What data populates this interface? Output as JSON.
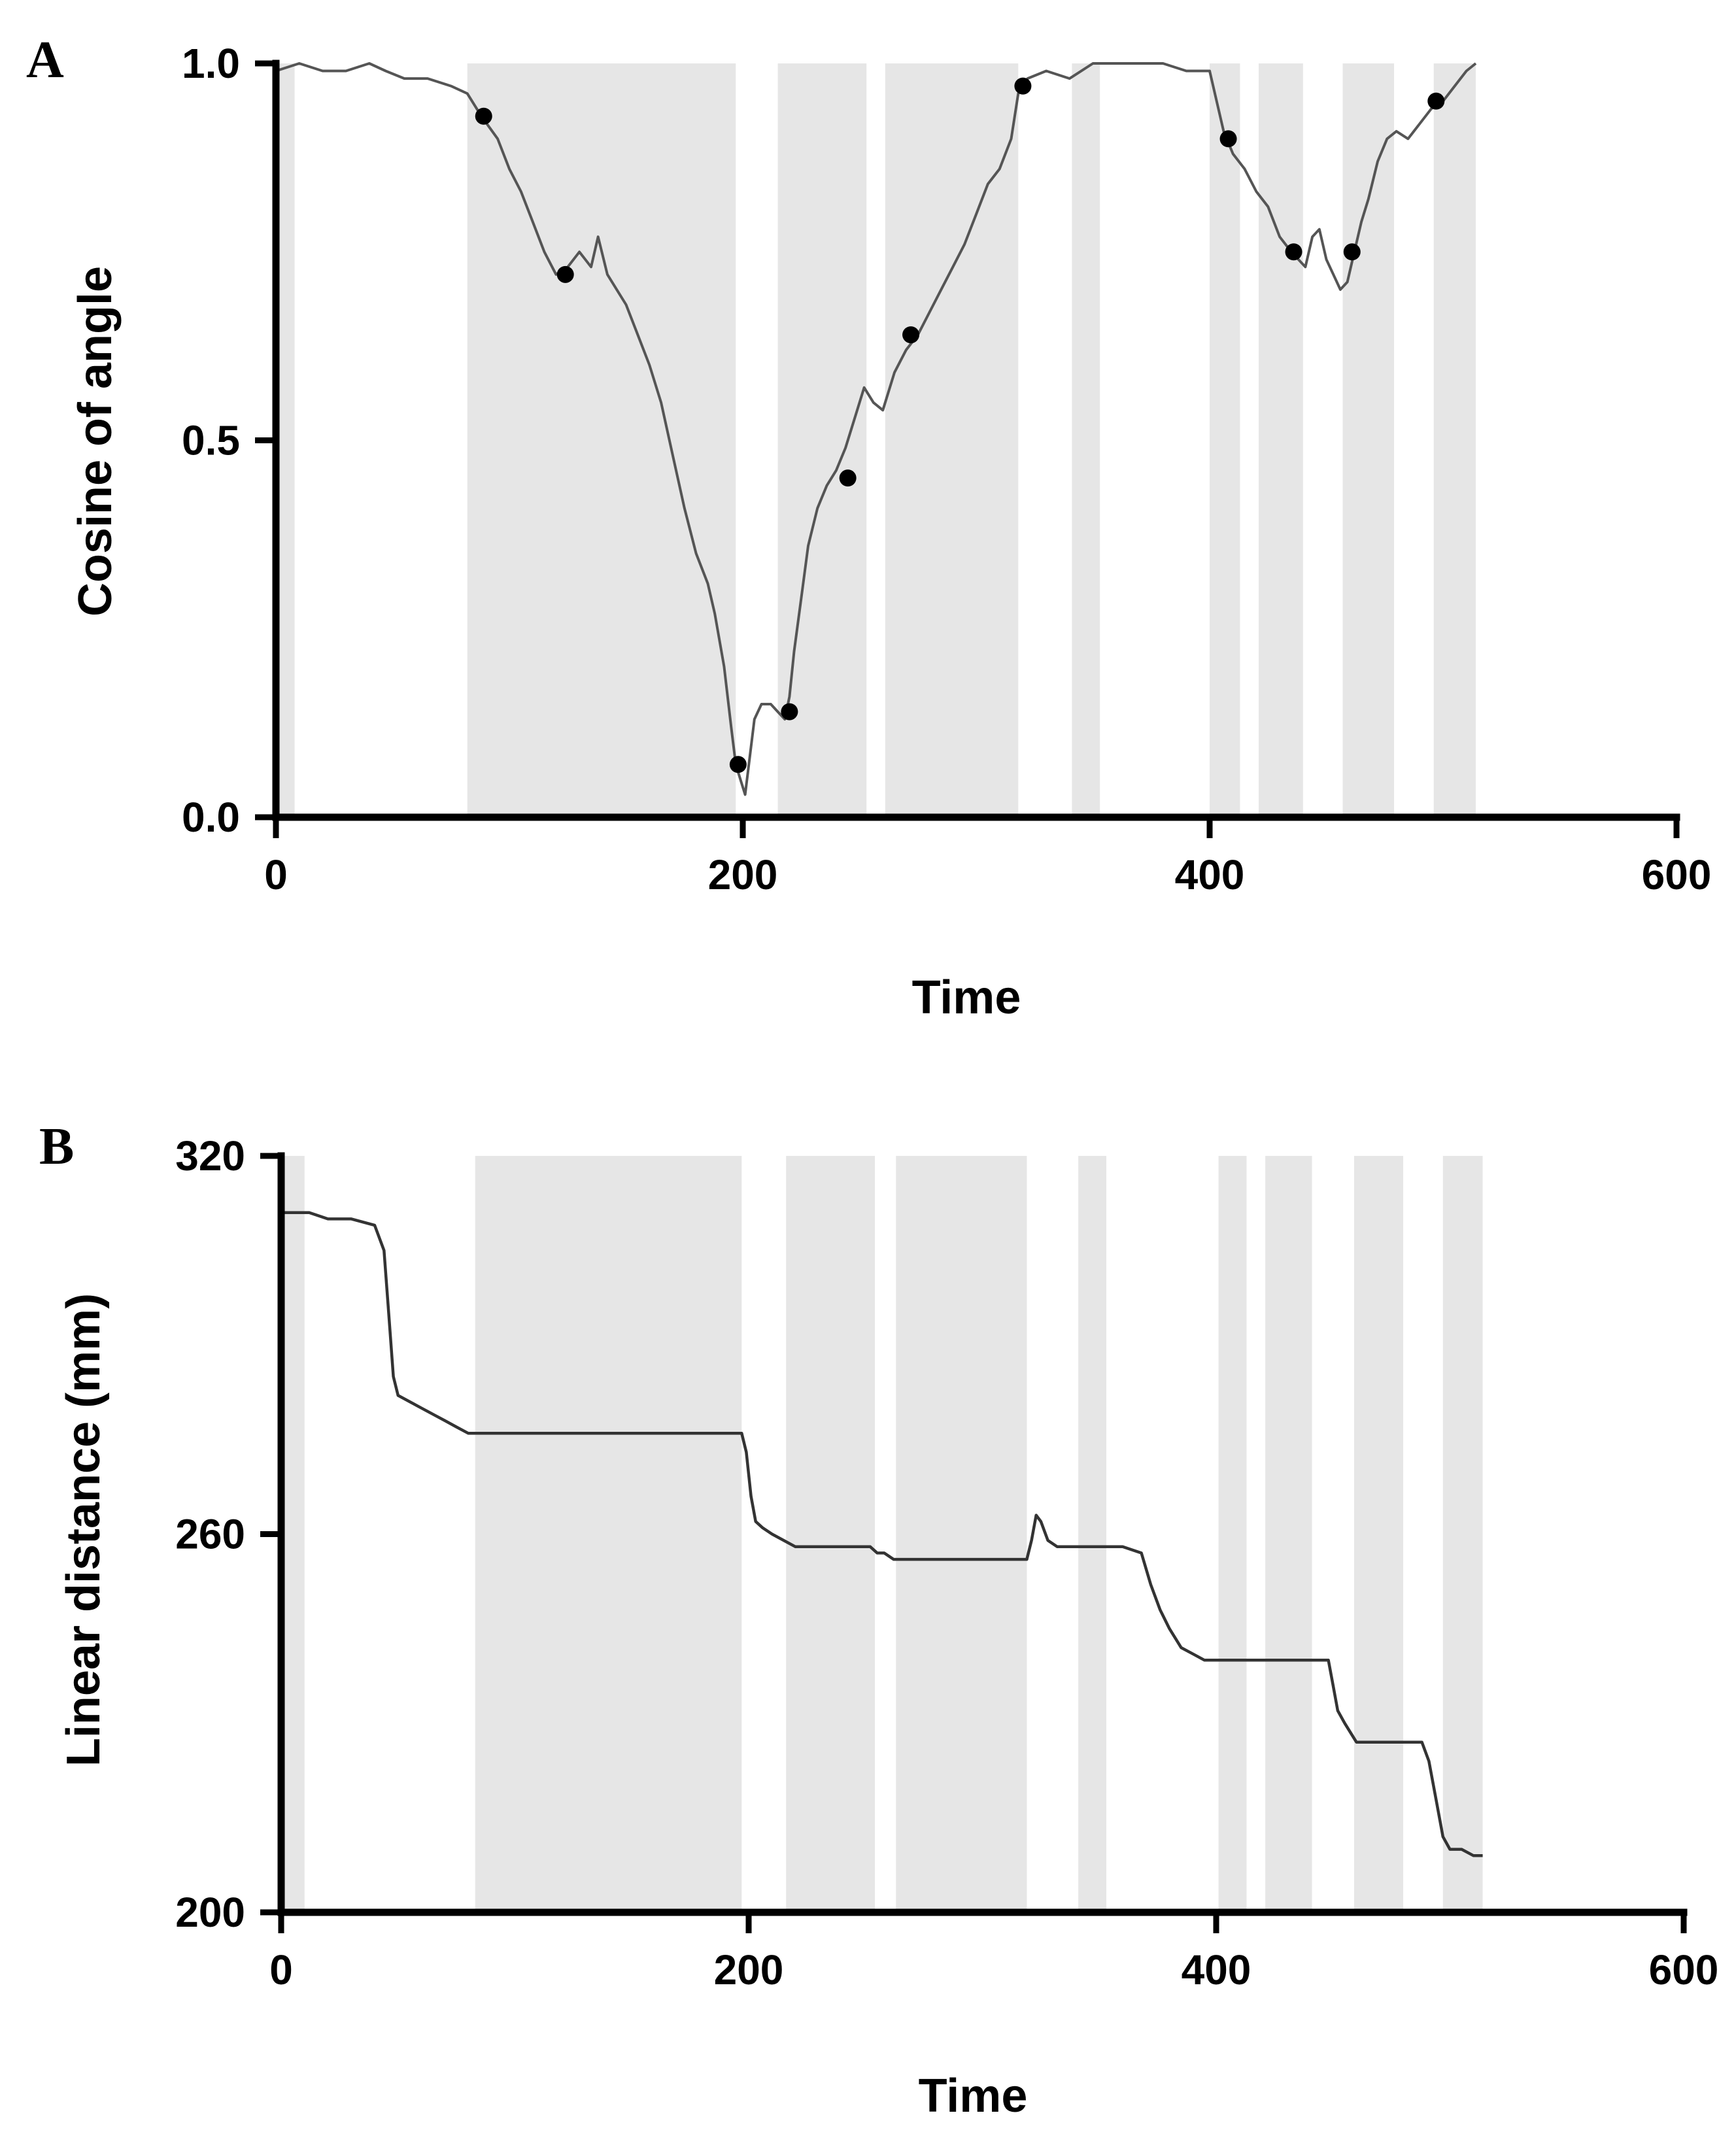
{
  "chart_data": [
    {
      "panel": "A",
      "type": "line",
      "xlabel": "Time",
      "ylabel": "Cosine of angle",
      "xlim": [
        0,
        600
      ],
      "ylim": [
        0,
        1
      ],
      "xticks": [
        "0",
        "200",
        "400",
        "600"
      ],
      "yticks": [
        "0.0",
        "0.5",
        "1.0"
      ],
      "xtick_values": [
        0,
        200,
        400,
        600
      ],
      "ytick_values": [
        0,
        0.5,
        1.0
      ],
      "shaded_intervals": [
        [
          0,
          8
        ],
        [
          82,
          197
        ],
        [
          215,
          253
        ],
        [
          261,
          318
        ],
        [
          341,
          353
        ],
        [
          400,
          413
        ],
        [
          421,
          440
        ],
        [
          457,
          479
        ],
        [
          496,
          514
        ]
      ],
      "series": [
        {
          "name": "cosine",
          "x": [
            0,
            10,
            20,
            30,
            40,
            47,
            55,
            65,
            75,
            82,
            88,
            95,
            100,
            105,
            110,
            115,
            120,
            125,
            130,
            135,
            138,
            142,
            146,
            150,
            155,
            160,
            165,
            170,
            175,
            180,
            185,
            188,
            192,
            195,
            197,
            199,
            201,
            203,
            205,
            208,
            212,
            215,
            218,
            220,
            222,
            225,
            228,
            232,
            236,
            240,
            244,
            248,
            252,
            256,
            260,
            265,
            270,
            275,
            280,
            285,
            290,
            295,
            300,
            305,
            310,
            315,
            318,
            322,
            330,
            340,
            350,
            360,
            370,
            380,
            390,
            400,
            403,
            406,
            410,
            415,
            420,
            425,
            430,
            435,
            438,
            441,
            444,
            447,
            450,
            453,
            456,
            459,
            462,
            465,
            468,
            472,
            476,
            480,
            485,
            490,
            495,
            500,
            505,
            510,
            514
          ],
          "y": [
            0.99,
            1.0,
            0.99,
            0.99,
            1.0,
            0.99,
            0.98,
            0.98,
            0.97,
            0.96,
            0.93,
            0.9,
            0.86,
            0.83,
            0.79,
            0.75,
            0.72,
            0.73,
            0.75,
            0.73,
            0.77,
            0.72,
            0.7,
            0.68,
            0.64,
            0.6,
            0.55,
            0.48,
            0.41,
            0.35,
            0.31,
            0.27,
            0.2,
            0.12,
            0.07,
            0.05,
            0.03,
            0.08,
            0.13,
            0.15,
            0.15,
            0.14,
            0.13,
            0.16,
            0.22,
            0.29,
            0.36,
            0.41,
            0.44,
            0.46,
            0.49,
            0.53,
            0.57,
            0.55,
            0.54,
            0.59,
            0.62,
            0.64,
            0.67,
            0.7,
            0.73,
            0.76,
            0.8,
            0.84,
            0.86,
            0.9,
            0.96,
            0.98,
            0.99,
            0.98,
            1.0,
            1.0,
            1.0,
            1.0,
            0.99,
            0.99,
            0.95,
            0.91,
            0.88,
            0.86,
            0.83,
            0.81,
            0.77,
            0.75,
            0.74,
            0.73,
            0.77,
            0.78,
            0.74,
            0.72,
            0.7,
            0.71,
            0.75,
            0.79,
            0.82,
            0.87,
            0.9,
            0.91,
            0.9,
            0.92,
            0.94,
            0.95,
            0.97,
            0.99,
            1.0
          ]
        }
      ],
      "markers": [
        {
          "x": 89,
          "y": 0.93
        },
        {
          "x": 124,
          "y": 0.72
        },
        {
          "x": 198,
          "y": 0.07
        },
        {
          "x": 220,
          "y": 0.14
        },
        {
          "x": 245,
          "y": 0.45
        },
        {
          "x": 272,
          "y": 0.64
        },
        {
          "x": 320,
          "y": 0.97
        },
        {
          "x": 408,
          "y": 0.9
        },
        {
          "x": 436,
          "y": 0.75
        },
        {
          "x": 461,
          "y": 0.75
        },
        {
          "x": 497,
          "y": 0.95
        }
      ]
    },
    {
      "panel": "B",
      "type": "line",
      "xlabel": "Time",
      "ylabel": "Linear distance (mm)",
      "xlim": [
        0,
        600
      ],
      "ylim": [
        200,
        320
      ],
      "xticks": [
        "0",
        "200",
        "400",
        "600"
      ],
      "yticks": [
        "200",
        "260",
        "320"
      ],
      "xtick_values": [
        0,
        200,
        400,
        600
      ],
      "ytick_values": [
        200,
        260,
        320
      ],
      "shaded_intervals": [
        [
          0,
          10
        ],
        [
          83,
          197
        ],
        [
          216,
          254
        ],
        [
          263,
          319
        ],
        [
          341,
          353
        ],
        [
          401,
          413
        ],
        [
          421,
          441
        ],
        [
          459,
          480
        ],
        [
          497,
          514
        ]
      ],
      "series": [
        {
          "name": "distance",
          "x": [
            0,
            12,
            20,
            30,
            40,
            44,
            46,
            48,
            50,
            55,
            60,
            65,
            70,
            75,
            80,
            83,
            100,
            130,
            160,
            190,
            197,
            199,
            201,
            203,
            206,
            210,
            215,
            220,
            240,
            252,
            255,
            258,
            262,
            270,
            275,
            280,
            300,
            319,
            321,
            323,
            325,
            328,
            332,
            340,
            350,
            360,
            368,
            372,
            376,
            380,
            385,
            390,
            395,
            400,
            420,
            440,
            448,
            450,
            452,
            455,
            460,
            470,
            480,
            488,
            491,
            494,
            497,
            500,
            505,
            510,
            514
          ],
          "y": [
            311,
            311,
            310,
            310,
            309,
            305,
            295,
            285,
            282,
            281,
            280,
            279,
            278,
            277,
            276,
            276,
            276,
            276,
            276,
            276,
            276,
            273,
            266,
            262,
            261,
            260,
            259,
            258,
            258,
            258,
            257,
            257,
            256,
            256,
            256,
            256,
            256,
            256,
            259,
            263,
            262,
            259,
            258,
            258,
            258,
            258,
            257,
            252,
            248,
            245,
            242,
            241,
            240,
            240,
            240,
            240,
            240,
            236,
            232,
            230,
            227,
            227,
            227,
            227,
            224,
            218,
            212,
            210,
            210,
            209,
            209
          ]
        }
      ]
    }
  ]
}
